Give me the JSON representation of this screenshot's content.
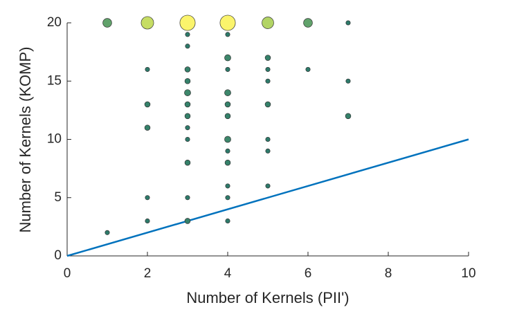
{
  "chart_data": {
    "type": "scatter",
    "xlabel": "Number of Kernels (PII')",
    "ylabel": "Number of Kernels (KOMP)",
    "xlim": [
      0,
      10
    ],
    "ylim": [
      0,
      20
    ],
    "xticks": [
      0,
      2,
      4,
      6,
      8,
      10
    ],
    "yticks": [
      0,
      5,
      10,
      15,
      20
    ],
    "grid": false,
    "colormap": [
      "#2d7a6a",
      "#5a9e6c",
      "#a8cf66",
      "#dfe862",
      "#fbf46c"
    ],
    "series": [
      {
        "x": [
          1,
          1,
          2,
          2,
          2,
          2,
          2,
          2,
          3,
          3,
          3,
          3,
          3,
          3,
          3,
          3,
          3,
          3,
          3,
          3,
          3,
          4,
          4,
          4,
          4,
          4,
          4,
          4,
          4,
          4,
          4,
          4,
          4,
          4,
          5,
          5,
          5,
          5,
          5,
          5,
          5,
          5,
          6,
          6,
          7,
          7,
          7
        ],
        "y": [
          20,
          2,
          20,
          16,
          13,
          11,
          5,
          3,
          20,
          19,
          18,
          16,
          15,
          14,
          13,
          12,
          11,
          10,
          8,
          5,
          3,
          20,
          19,
          17,
          16,
          14,
          13,
          12,
          10,
          9,
          8,
          6,
          5,
          3,
          20,
          17,
          16,
          15,
          13,
          10,
          9,
          6,
          20,
          16,
          20,
          15,
          12
        ],
        "sizes": [
          4,
          1,
          8,
          1,
          1.5,
          1.5,
          1,
          1,
          12,
          1,
          1,
          1.5,
          1.5,
          2,
          1.5,
          1.5,
          1,
          1,
          1.5,
          1,
          1.5,
          12,
          1,
          2,
          1,
          2,
          1.5,
          1.5,
          2,
          1,
          1.5,
          1,
          1,
          1,
          7,
          1.5,
          1,
          1,
          1.5,
          1,
          1,
          1,
          4,
          1,
          1,
          1,
          1.5
        ]
      }
    ],
    "line": {
      "x": [
        0,
        10
      ],
      "y": [
        0,
        10
      ],
      "color": "#0072bd"
    }
  }
}
